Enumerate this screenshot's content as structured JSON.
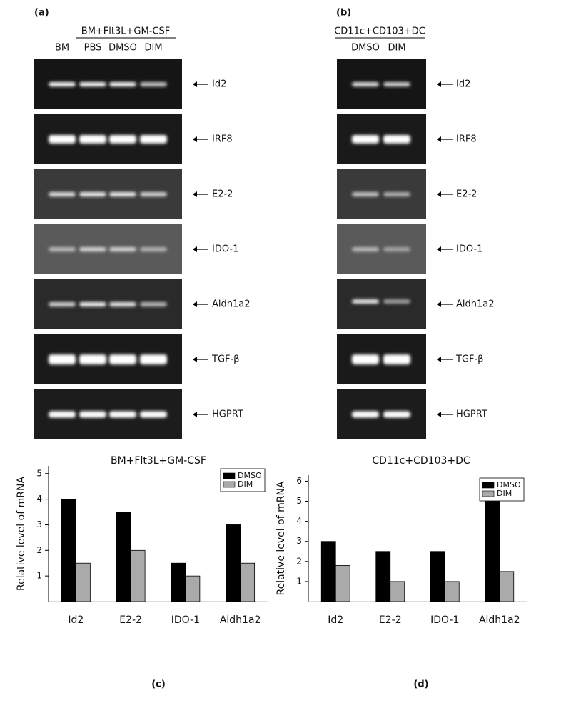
{
  "gels": {
    "a": {
      "label": "(a)",
      "header": "BM+Flt3L+GM-CSF",
      "lanes": [
        "BM",
        "PBS",
        "DMSO",
        "DIM"
      ]
    },
    "b": {
      "label": "(b)",
      "header": "CD11c+CD103+DC",
      "lanes": [
        "DMSO",
        "DIM"
      ]
    },
    "genes": [
      "Id2",
      "IRF8",
      "E2-2",
      "IDO-1",
      "Aldh1a2",
      "TGF-β",
      "HGPRT"
    ]
  },
  "chart_data": [
    {
      "type": "bar",
      "title": "BM+Flt3L+GM-CSF",
      "y_label": "Relative level of mRNA",
      "caption": "(c)",
      "categories": [
        "Id2",
        "E2-2",
        "IDO-1",
        "Aldh1a2"
      ],
      "series": [
        {
          "name": "DMSO",
          "color": "#000000",
          "values": [
            4,
            3.5,
            1.5,
            3
          ]
        },
        {
          "name": "DIM",
          "color": "#aaaaaa",
          "values": [
            1.5,
            2,
            1,
            1.5
          ]
        }
      ],
      "ylim": [
        0,
        5.3
      ],
      "yticks": [
        1,
        2,
        3,
        4,
        5
      ],
      "legend": "upper right"
    },
    {
      "type": "bar",
      "title": "CD11c+CD103+DC",
      "y_label": "Relative level of mRNA",
      "caption": "(d)",
      "categories": [
        "Id2",
        "E2-2",
        "IDO-1",
        "Aldh1a2"
      ],
      "series": [
        {
          "name": "DMSO",
          "color": "#000000",
          "values": [
            3,
            2.5,
            2.5,
            5
          ]
        },
        {
          "name": "DIM",
          "color": "#aaaaaa",
          "values": [
            1.8,
            1,
            1,
            1.5
          ]
        }
      ],
      "ylim": [
        0,
        6.3
      ],
      "yticks": [
        1,
        2,
        3,
        4,
        5,
        6
      ],
      "legend": "upper right"
    }
  ]
}
